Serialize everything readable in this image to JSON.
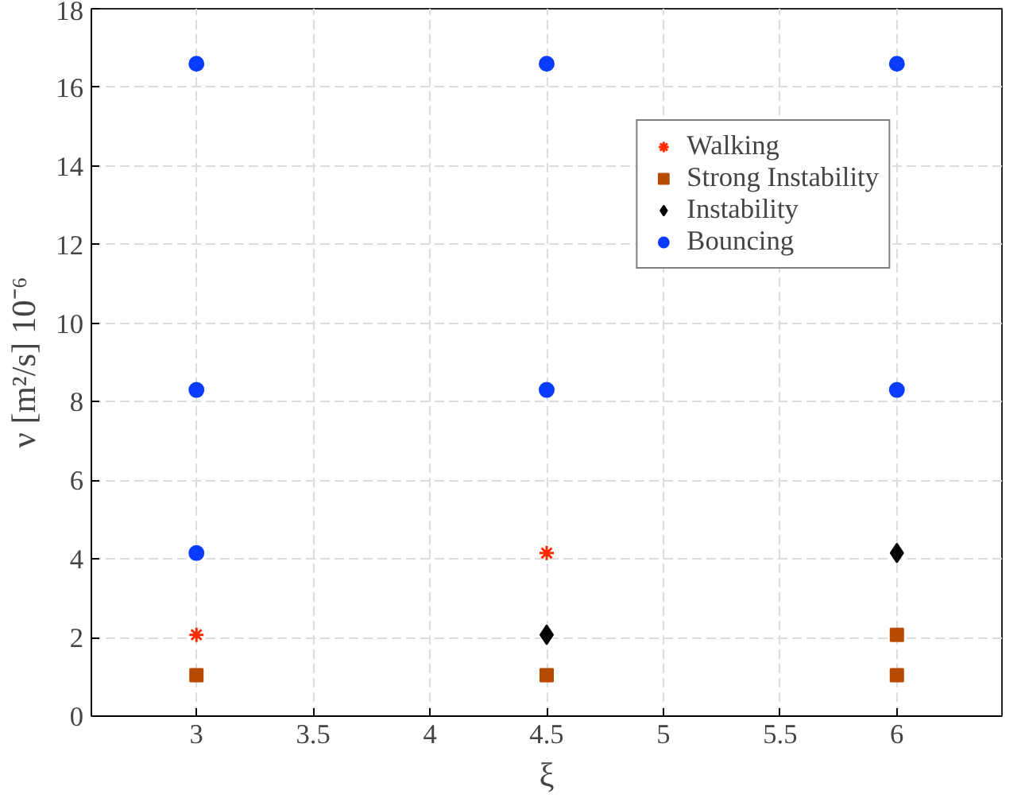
{
  "chart_data": {
    "type": "scatter",
    "xlabel": "ξ",
    "ylabel": "ν [m²/s] 10⁻⁶",
    "xlim": [
      2.55,
      6.45
    ],
    "ylim": [
      0,
      18
    ],
    "xticks": [
      3,
      3.5,
      4,
      4.5,
      5,
      5.5,
      6
    ],
    "yticks": [
      0,
      2,
      4,
      6,
      8,
      10,
      12,
      14,
      16,
      18
    ],
    "grid": true,
    "legend": "top right",
    "series": [
      {
        "name": "Walking",
        "color": "#ff2a00",
        "marker": "cross",
        "x": [
          3,
          4.5
        ],
        "values": [
          2.07,
          4.15
        ]
      },
      {
        "name": "Strong Instability",
        "color": "#b84a00",
        "marker": "square",
        "x": [
          3,
          4.5,
          6,
          6
        ],
        "values": [
          1.04,
          1.04,
          2.07,
          1.04
        ]
      },
      {
        "name": "Instability",
        "color": "#000000",
        "marker": "diamond",
        "x": [
          4.5,
          6
        ],
        "values": [
          2.07,
          4.15
        ]
      },
      {
        "name": "Bouncing",
        "color": "#0a3cff",
        "marker": "circle",
        "x": [
          3,
          3,
          3,
          4.5,
          4.5,
          6,
          6
        ],
        "values": [
          16.6,
          8.3,
          4.15,
          16.6,
          8.3,
          16.6,
          8.3
        ]
      }
    ]
  }
}
